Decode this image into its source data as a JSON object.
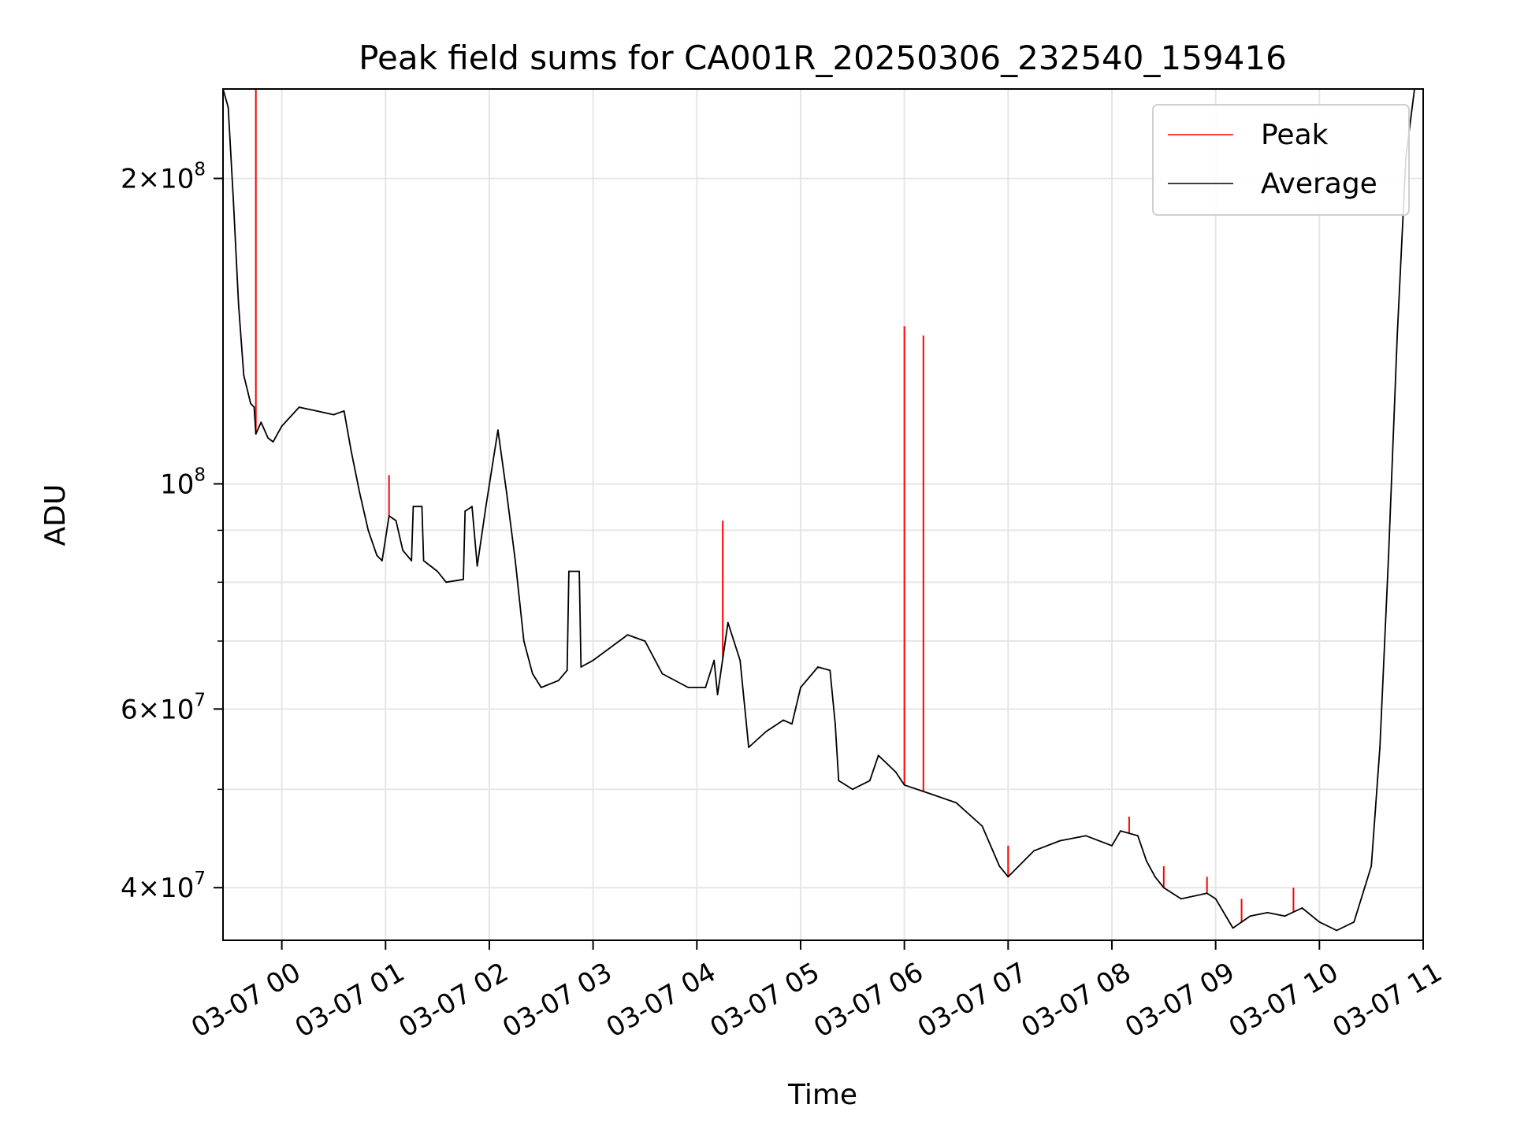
{
  "chart_data": {
    "type": "line",
    "title": "Peak field sums for CA001R_20250306_232540_159416",
    "xlabel": "Time",
    "ylabel": "ADU",
    "xlim": [
      "03-06 23:26",
      "03-07 11:00"
    ],
    "ylim": [
      35500000,
      245000000
    ],
    "yscale": "log",
    "grid": true,
    "legend_position": "top-right",
    "x_ticks": [
      "03-07 00",
      "03-07 01",
      "03-07 02",
      "03-07 03",
      "03-07 04",
      "03-07 05",
      "03-07 06",
      "03-07 07",
      "03-07 08",
      "03-07 09",
      "03-07 10",
      "03-07 11"
    ],
    "y_ticks_major": [
      {
        "value": 40000000,
        "mantissa": "4",
        "base": "10",
        "exponent": "7"
      },
      {
        "value": 60000000,
        "mantissa": "6",
        "base": "10",
        "exponent": "7"
      },
      {
        "value": 100000000,
        "mantissa": "",
        "base": "10",
        "exponent": "8"
      },
      {
        "value": 200000000,
        "mantissa": "2",
        "base": "10",
        "exponent": "8"
      }
    ],
    "y_ticks_minor": [
      50000000,
      70000000,
      80000000,
      90000000
    ],
    "series": [
      {
        "name": "Average",
        "color": "#000000",
        "points": [
          [
            "03-06 23:26",
            245000000
          ],
          [
            "03-06 23:29",
            235000000
          ],
          [
            "03-06 23:32",
            190000000
          ],
          [
            "03-06 23:35",
            150000000
          ],
          [
            "03-06 23:38",
            128000000
          ],
          [
            "03-06 23:42",
            120000000
          ],
          [
            "03-06 23:44",
            119000000
          ],
          [
            "03-06 23:45",
            112000000
          ],
          [
            "03-06 23:48",
            115000000
          ],
          [
            "03-06 23:52",
            111000000
          ],
          [
            "03-06 23:55",
            110000000
          ],
          [
            "03-07 00:00",
            114000000
          ],
          [
            "03-07 00:10",
            119000000
          ],
          [
            "03-07 00:20",
            118000000
          ],
          [
            "03-07 00:30",
            117000000
          ],
          [
            "03-07 00:36",
            118000000
          ],
          [
            "03-07 00:40",
            108000000
          ],
          [
            "03-07 00:45",
            98000000
          ],
          [
            "03-07 00:50",
            90000000
          ],
          [
            "03-07 00:55",
            85000000
          ],
          [
            "03-07 00:58",
            84000000
          ],
          [
            "03-07 01:02",
            93000000
          ],
          [
            "03-07 01:06",
            92000000
          ],
          [
            "03-07 01:10",
            86000000
          ],
          [
            "03-07 01:15",
            84000000
          ],
          [
            "03-07 01:16",
            95000000
          ],
          [
            "03-07 01:21",
            95000000
          ],
          [
            "03-07 01:22",
            84000000
          ],
          [
            "03-07 01:30",
            82000000
          ],
          [
            "03-07 01:35",
            80000000
          ],
          [
            "03-07 01:45",
            80500000
          ],
          [
            "03-07 01:46",
            94000000
          ],
          [
            "03-07 01:50",
            95000000
          ],
          [
            "03-07 01:53",
            83000000
          ],
          [
            "03-07 01:58",
            95000000
          ],
          [
            "03-07 02:05",
            113000000
          ],
          [
            "03-07 02:10",
            98000000
          ],
          [
            "03-07 02:15",
            84000000
          ],
          [
            "03-07 02:20",
            70000000
          ],
          [
            "03-07 02:25",
            65000000
          ],
          [
            "03-07 02:30",
            63000000
          ],
          [
            "03-07 02:40",
            64000000
          ],
          [
            "03-07 02:45",
            65500000
          ],
          [
            "03-07 02:46",
            82000000
          ],
          [
            "03-07 02:52",
            82000000
          ],
          [
            "03-07 02:53",
            66000000
          ],
          [
            "03-07 03:00",
            67000000
          ],
          [
            "03-07 03:20",
            71000000
          ],
          [
            "03-07 03:30",
            70000000
          ],
          [
            "03-07 03:40",
            65000000
          ],
          [
            "03-07 03:55",
            63000000
          ],
          [
            "03-07 04:05",
            63000000
          ],
          [
            "03-07 04:10",
            67000000
          ],
          [
            "03-07 04:12",
            62000000
          ],
          [
            "03-07 04:18",
            73000000
          ],
          [
            "03-07 04:25",
            67000000
          ],
          [
            "03-07 04:30",
            55000000
          ],
          [
            "03-07 04:40",
            57000000
          ],
          [
            "03-07 04:50",
            58500000
          ],
          [
            "03-07 04:55",
            58000000
          ],
          [
            "03-07 05:00",
            63000000
          ],
          [
            "03-07 05:10",
            66000000
          ],
          [
            "03-07 05:17",
            65500000
          ],
          [
            "03-07 05:20",
            58000000
          ],
          [
            "03-07 05:22",
            51000000
          ],
          [
            "03-07 05:30",
            50000000
          ],
          [
            "03-07 05:40",
            51000000
          ],
          [
            "03-07 05:45",
            54000000
          ],
          [
            "03-07 05:55",
            52000000
          ],
          [
            "03-07 06:00",
            50500000
          ],
          [
            "03-07 06:15",
            49500000
          ],
          [
            "03-07 06:30",
            48500000
          ],
          [
            "03-07 06:45",
            46000000
          ],
          [
            "03-07 06:55",
            42000000
          ],
          [
            "03-07 07:00",
            41000000
          ],
          [
            "03-07 07:15",
            43500000
          ],
          [
            "03-07 07:30",
            44500000
          ],
          [
            "03-07 07:45",
            45000000
          ],
          [
            "03-07 08:00",
            44000000
          ],
          [
            "03-07 08:05",
            45500000
          ],
          [
            "03-07 08:15",
            45000000
          ],
          [
            "03-07 08:20",
            42500000
          ],
          [
            "03-07 08:25",
            41000000
          ],
          [
            "03-07 08:30",
            40000000
          ],
          [
            "03-07 08:40",
            39000000
          ],
          [
            "03-07 08:55",
            39500000
          ],
          [
            "03-07 09:00",
            39000000
          ],
          [
            "03-07 09:10",
            36500000
          ],
          [
            "03-07 09:20",
            37500000
          ],
          [
            "03-07 09:30",
            37800000
          ],
          [
            "03-07 09:40",
            37500000
          ],
          [
            "03-07 09:50",
            38200000
          ],
          [
            "03-07 10:00",
            37000000
          ],
          [
            "03-07 10:10",
            36300000
          ],
          [
            "03-07 10:20",
            37000000
          ],
          [
            "03-07 10:30",
            42000000
          ],
          [
            "03-07 10:35",
            55000000
          ],
          [
            "03-07 10:40",
            85000000
          ],
          [
            "03-07 10:45",
            140000000
          ],
          [
            "03-07 10:50",
            210000000
          ],
          [
            "03-07 10:55",
            245000000
          ],
          [
            "03-07 11:00",
            245000000
          ]
        ]
      },
      {
        "name": "Peak",
        "color": "#ff0000",
        "points": [
          [
            "03-06 23:45",
            245000000
          ],
          [
            "03-07 01:02",
            102000000
          ],
          [
            "03-07 04:15",
            92000000
          ],
          [
            "03-07 06:00",
            143000000
          ],
          [
            "03-07 06:11",
            140000000
          ],
          [
            "03-07 07:00",
            44000000
          ],
          [
            "03-07 08:10",
            47000000
          ],
          [
            "03-07 08:30",
            42000000
          ],
          [
            "03-07 08:55",
            41000000
          ],
          [
            "03-07 09:15",
            39000000
          ],
          [
            "03-07 09:45",
            40000000
          ]
        ]
      }
    ]
  }
}
